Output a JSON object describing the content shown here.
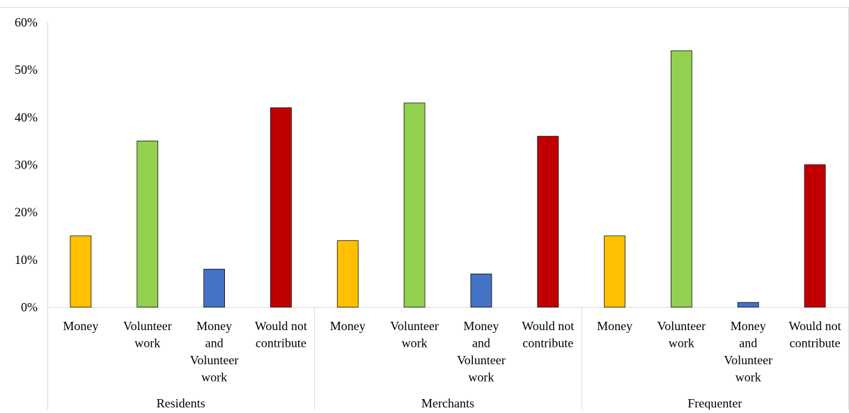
{
  "chart_data": {
    "type": "bar",
    "title": "",
    "xlabel": "",
    "ylabel": "",
    "ylim": [
      0,
      0.6
    ],
    "yticks": [
      "0%",
      "10%",
      "20%",
      "30%",
      "40%",
      "50%",
      "60%"
    ],
    "grid": false,
    "legend": "none",
    "categories": [
      "Money",
      "Volunteer work",
      "Money and Volunteer work",
      "Would not contribute"
    ],
    "category_label_lines": [
      [
        "Money"
      ],
      [
        "Volunteer",
        "work"
      ],
      [
        "Money",
        "and",
        "Volunteer",
        "work"
      ],
      [
        "Would not",
        "contribute"
      ]
    ],
    "groups": [
      {
        "name": "Residents",
        "values": [
          0.15,
          0.35,
          0.08,
          0.42
        ]
      },
      {
        "name": "Merchants",
        "values": [
          0.14,
          0.43,
          0.07,
          0.36
        ]
      },
      {
        "name": "Frequenter",
        "values": [
          0.15,
          0.54,
          0.01,
          0.3
        ]
      }
    ],
    "colors": [
      "#FFC000",
      "#92D050",
      "#4472C4",
      "#C00000"
    ]
  }
}
